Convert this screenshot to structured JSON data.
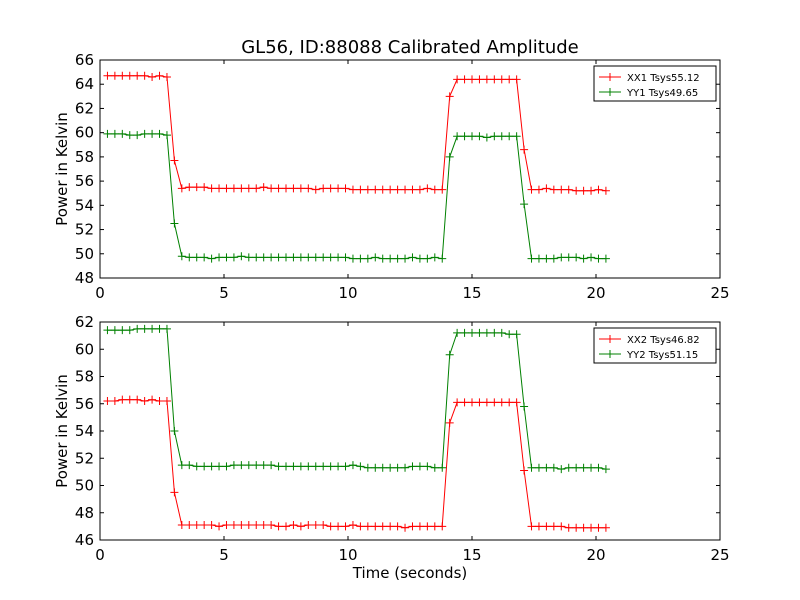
{
  "figure": {
    "title": "GL56, ID:88088 Calibrated Amplitude",
    "xlabel": "Time (seconds)"
  },
  "chart_data": [
    {
      "type": "line",
      "xlabel": "",
      "ylabel": "Power in Kelvin",
      "xlim": [
        0,
        25
      ],
      "ylim": [
        48,
        66
      ],
      "xticks": [
        0,
        5,
        10,
        15,
        20,
        25
      ],
      "yticks": [
        48,
        50,
        52,
        54,
        56,
        58,
        60,
        62,
        64,
        66
      ],
      "grid": false,
      "legend_position": "top-right",
      "x": [
        0.3,
        0.6,
        0.9,
        1.2,
        1.5,
        1.8,
        2.1,
        2.4,
        2.7,
        3.0,
        3.3,
        3.6,
        3.9,
        4.2,
        4.5,
        4.8,
        5.1,
        5.4,
        5.7,
        6.0,
        6.3,
        6.6,
        6.9,
        7.2,
        7.5,
        7.8,
        8.1,
        8.4,
        8.7,
        9.0,
        9.3,
        9.6,
        9.9,
        10.2,
        10.5,
        10.8,
        11.1,
        11.4,
        11.7,
        12.0,
        12.3,
        12.6,
        12.9,
        13.2,
        13.5,
        13.8,
        14.1,
        14.4,
        14.7,
        15.0,
        15.3,
        15.6,
        15.9,
        16.2,
        16.5,
        16.8,
        17.1,
        17.4,
        17.7,
        18.0,
        18.3,
        18.6,
        18.9,
        19.2,
        19.5,
        19.8,
        20.1,
        20.4
      ],
      "series": [
        {
          "name": "XX1 Tsys55.12",
          "color": "#ff0000",
          "values": [
            64.7,
            64.7,
            64.7,
            64.7,
            64.7,
            64.7,
            64.6,
            64.7,
            64.6,
            57.7,
            55.4,
            55.5,
            55.5,
            55.5,
            55.4,
            55.4,
            55.4,
            55.4,
            55.4,
            55.4,
            55.4,
            55.5,
            55.4,
            55.4,
            55.4,
            55.4,
            55.4,
            55.4,
            55.3,
            55.4,
            55.4,
            55.4,
            55.4,
            55.3,
            55.3,
            55.3,
            55.3,
            55.3,
            55.3,
            55.3,
            55.3,
            55.3,
            55.3,
            55.4,
            55.3,
            55.3,
            63.0,
            64.4,
            64.4,
            64.4,
            64.4,
            64.4,
            64.4,
            64.4,
            64.4,
            64.4,
            58.6,
            55.3,
            55.3,
            55.4,
            55.3,
            55.3,
            55.3,
            55.2,
            55.2,
            55.2,
            55.3,
            55.2
          ]
        },
        {
          "name": "YY1 Tsys49.65",
          "color": "#008000",
          "values": [
            59.9,
            59.9,
            59.9,
            59.8,
            59.8,
            59.9,
            59.9,
            59.9,
            59.8,
            52.5,
            49.8,
            49.7,
            49.7,
            49.7,
            49.6,
            49.7,
            49.7,
            49.7,
            49.8,
            49.7,
            49.7,
            49.7,
            49.7,
            49.7,
            49.7,
            49.7,
            49.7,
            49.7,
            49.7,
            49.7,
            49.7,
            49.7,
            49.7,
            49.6,
            49.6,
            49.6,
            49.7,
            49.6,
            49.6,
            49.6,
            49.6,
            49.7,
            49.6,
            49.6,
            49.7,
            49.6,
            58.0,
            59.7,
            59.7,
            59.7,
            59.7,
            59.6,
            59.7,
            59.7,
            59.7,
            59.7,
            54.1,
            49.6,
            49.6,
            49.6,
            49.6,
            49.7,
            49.7,
            49.7,
            49.6,
            49.7,
            49.6,
            49.6
          ]
        }
      ]
    },
    {
      "type": "line",
      "xlabel": "Time (seconds)",
      "ylabel": "Power in Kelvin",
      "xlim": [
        0,
        25
      ],
      "ylim": [
        46,
        62
      ],
      "xticks": [
        0,
        5,
        10,
        15,
        20,
        25
      ],
      "yticks": [
        46,
        48,
        50,
        52,
        54,
        56,
        58,
        60,
        62
      ],
      "grid": false,
      "legend_position": "top-right",
      "x": [
        0.3,
        0.6,
        0.9,
        1.2,
        1.5,
        1.8,
        2.1,
        2.4,
        2.7,
        3.0,
        3.3,
        3.6,
        3.9,
        4.2,
        4.5,
        4.8,
        5.1,
        5.4,
        5.7,
        6.0,
        6.3,
        6.6,
        6.9,
        7.2,
        7.5,
        7.8,
        8.1,
        8.4,
        8.7,
        9.0,
        9.3,
        9.6,
        9.9,
        10.2,
        10.5,
        10.8,
        11.1,
        11.4,
        11.7,
        12.0,
        12.3,
        12.6,
        12.9,
        13.2,
        13.5,
        13.8,
        14.1,
        14.4,
        14.7,
        15.0,
        15.3,
        15.6,
        15.9,
        16.2,
        16.5,
        16.8,
        17.1,
        17.4,
        17.7,
        18.0,
        18.3,
        18.6,
        18.9,
        19.2,
        19.5,
        19.8,
        20.1,
        20.4
      ],
      "series": [
        {
          "name": "XX2 Tsys46.82",
          "color": "#ff0000",
          "values": [
            56.2,
            56.2,
            56.3,
            56.3,
            56.3,
            56.2,
            56.3,
            56.2,
            56.2,
            49.5,
            47.1,
            47.1,
            47.1,
            47.1,
            47.1,
            47.0,
            47.1,
            47.1,
            47.1,
            47.1,
            47.1,
            47.1,
            47.1,
            47.0,
            47.0,
            47.1,
            47.0,
            47.1,
            47.1,
            47.1,
            47.0,
            47.0,
            47.0,
            47.1,
            47.0,
            47.0,
            47.0,
            47.0,
            47.0,
            47.0,
            46.9,
            47.0,
            47.0,
            47.0,
            47.0,
            47.0,
            54.6,
            56.1,
            56.1,
            56.1,
            56.1,
            56.1,
            56.1,
            56.1,
            56.1,
            56.1,
            51.1,
            47.0,
            47.0,
            47.0,
            47.0,
            47.0,
            46.9,
            46.9,
            46.9,
            46.9,
            46.9,
            46.9
          ]
        },
        {
          "name": "YY2 Tsys51.15",
          "color": "#008000",
          "values": [
            61.4,
            61.4,
            61.4,
            61.4,
            61.5,
            61.5,
            61.5,
            61.5,
            61.5,
            54.0,
            51.5,
            51.5,
            51.4,
            51.4,
            51.4,
            51.4,
            51.4,
            51.5,
            51.5,
            51.5,
            51.5,
            51.5,
            51.5,
            51.4,
            51.4,
            51.4,
            51.4,
            51.4,
            51.4,
            51.4,
            51.4,
            51.4,
            51.4,
            51.5,
            51.4,
            51.3,
            51.3,
            51.3,
            51.3,
            51.3,
            51.3,
            51.4,
            51.4,
            51.4,
            51.3,
            51.3,
            59.6,
            61.2,
            61.2,
            61.2,
            61.2,
            61.2,
            61.2,
            61.2,
            61.1,
            61.1,
            55.8,
            51.3,
            51.3,
            51.3,
            51.3,
            51.2,
            51.3,
            51.3,
            51.3,
            51.3,
            51.3,
            51.2
          ]
        }
      ]
    }
  ]
}
